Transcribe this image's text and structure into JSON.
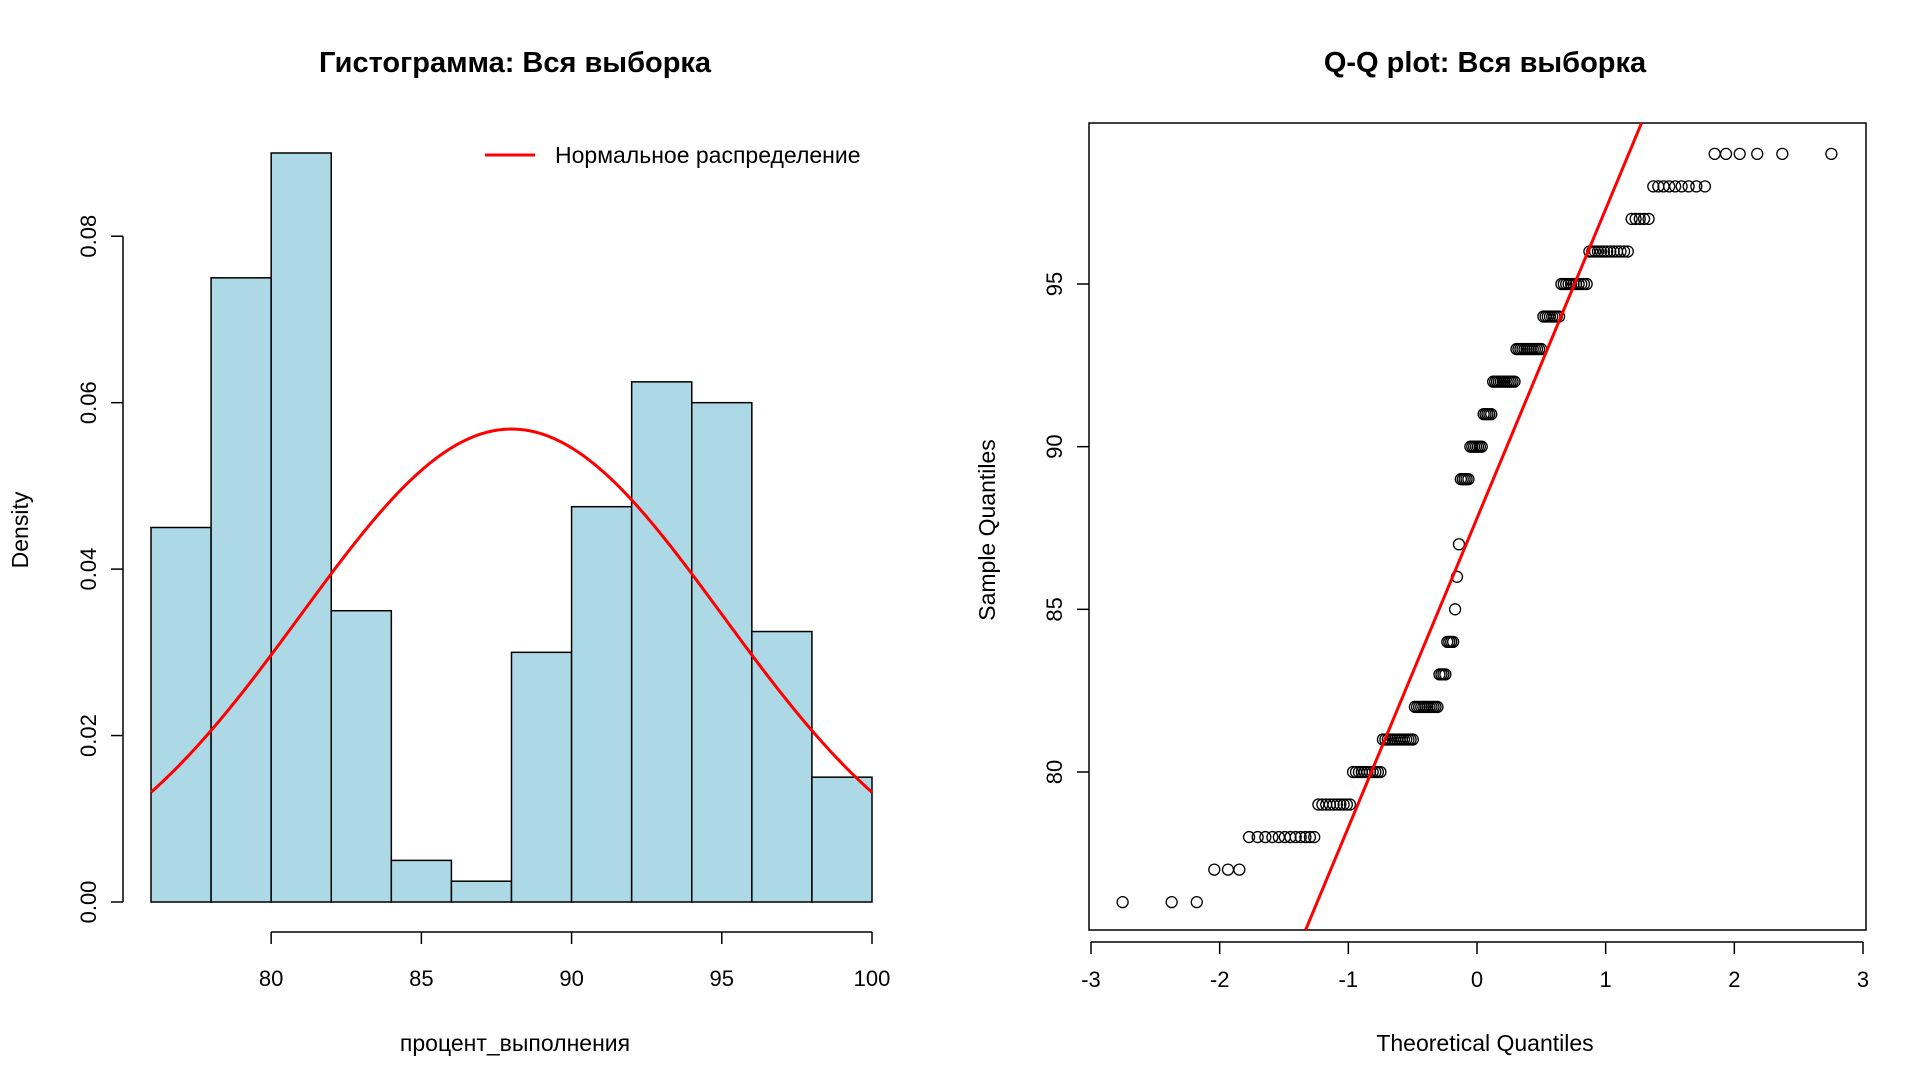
{
  "chart_data": [
    {
      "type": "bar",
      "subtype": "histogram",
      "title": "Гистограмма: Вся выборка",
      "xlabel": "процент_выполнения",
      "ylabel": "Density",
      "xlim": [
        76,
        100
      ],
      "ylim": [
        0,
        0.09
      ],
      "x_ticks": [
        "80",
        "85",
        "90",
        "95",
        "100"
      ],
      "y_ticks": [
        "0.00",
        "0.02",
        "0.04",
        "0.06",
        "0.08"
      ],
      "bar_color": "#ADD8E6",
      "bins": [
        {
          "from": 76,
          "to": 78,
          "density": 0.045
        },
        {
          "from": 78,
          "to": 80,
          "density": 0.075
        },
        {
          "from": 80,
          "to": 82,
          "density": 0.09
        },
        {
          "from": 82,
          "to": 84,
          "density": 0.035
        },
        {
          "from": 84,
          "to": 86,
          "density": 0.005
        },
        {
          "from": 86,
          "to": 88,
          "density": 0.0025
        },
        {
          "from": 88,
          "to": 90,
          "density": 0.03
        },
        {
          "from": 90,
          "to": 92,
          "density": 0.0475
        },
        {
          "from": 92,
          "to": 94,
          "density": 0.0625
        },
        {
          "from": 94,
          "to": 96,
          "density": 0.06
        },
        {
          "from": 96,
          "to": 98,
          "density": 0.0325
        },
        {
          "from": 98,
          "to": 100,
          "density": 0.015
        }
      ],
      "normal_curve": {
        "mean": 88,
        "sd": 7.02,
        "color": "#FF0000"
      },
      "legend": {
        "position": "top-right",
        "entries": [
          "Нормальное распределение"
        ]
      }
    },
    {
      "type": "scatter",
      "subtype": "qq-plot",
      "title": "Q-Q plot: Вся выборка",
      "xlabel": "Theoretical Quantiles",
      "ylabel": "Sample Quantiles",
      "xlim": [
        -3,
        3
      ],
      "ylim": [
        75,
        100
      ],
      "x_ticks": [
        "-3",
        "-2",
        "-1",
        "0",
        "1",
        "2",
        "3"
      ],
      "y_ticks": [
        "80",
        "85",
        "90",
        "95"
      ],
      "qq_line": {
        "intercept": 87.8,
        "slope": 9.5,
        "color": "#FF0000"
      },
      "value_counts": [
        {
          "value": 76,
          "count": 3
        },
        {
          "value": 77,
          "count": 3
        },
        {
          "value": 78,
          "count": 12
        },
        {
          "value": 79,
          "count": 10
        },
        {
          "value": 80,
          "count": 11
        },
        {
          "value": 81,
          "count": 14
        },
        {
          "value": 82,
          "count": 12
        },
        {
          "value": 83,
          "count": 4
        },
        {
          "value": 84,
          "count": 4
        },
        {
          "value": 85,
          "count": 1
        },
        {
          "value": 86,
          "count": 1
        },
        {
          "value": 87,
          "count": 1
        },
        {
          "value": 89,
          "count": 5
        },
        {
          "value": 90,
          "count": 7
        },
        {
          "value": 91,
          "count": 5
        },
        {
          "value": 92,
          "count": 12
        },
        {
          "value": 93,
          "count": 13
        },
        {
          "value": 94,
          "count": 8
        },
        {
          "value": 95,
          "count": 11
        },
        {
          "value": 96,
          "count": 13
        },
        {
          "value": 97,
          "count": 5
        },
        {
          "value": 98,
          "count": 9
        },
        {
          "value": 99,
          "count": 6
        }
      ]
    }
  ]
}
